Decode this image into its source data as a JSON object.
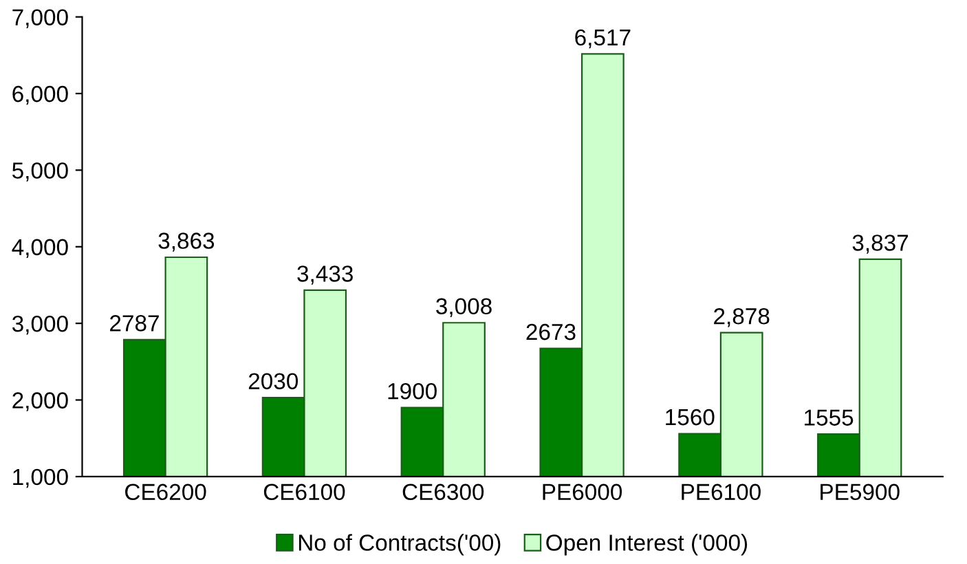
{
  "chart_data": {
    "type": "bar",
    "categories": [
      "CE6200",
      "CE6100",
      "CE6300",
      "PE6000",
      "PE6100",
      "PE5900"
    ],
    "series": [
      {
        "name": "No of Contracts('00)",
        "color": "#008000",
        "values": [
          2787,
          2030,
          1900,
          2673,
          1560,
          1555
        ],
        "value_labels": [
          "2787",
          "2030",
          "1900",
          "2673",
          "1560",
          "1555"
        ]
      },
      {
        "name": "Open Interest ('000)",
        "color": "#ccffcc",
        "values": [
          3863,
          3433,
          3008,
          6517,
          2878,
          3837
        ],
        "value_labels": [
          "3,863",
          "3,433",
          "3,008",
          "6,517",
          "2,878",
          "3,837"
        ]
      }
    ],
    "ylim": [
      1000,
      7000
    ],
    "yticks": [
      {
        "value": 1000,
        "label": "1,000"
      },
      {
        "value": 2000,
        "label": "2,000"
      },
      {
        "value": 3000,
        "label": "3,000"
      },
      {
        "value": 4000,
        "label": "4,000"
      },
      {
        "value": 5000,
        "label": "5,000"
      },
      {
        "value": 6000,
        "label": "6,000"
      },
      {
        "value": 7000,
        "label": "7,000"
      }
    ],
    "grid": false,
    "legend": "bottom"
  }
}
